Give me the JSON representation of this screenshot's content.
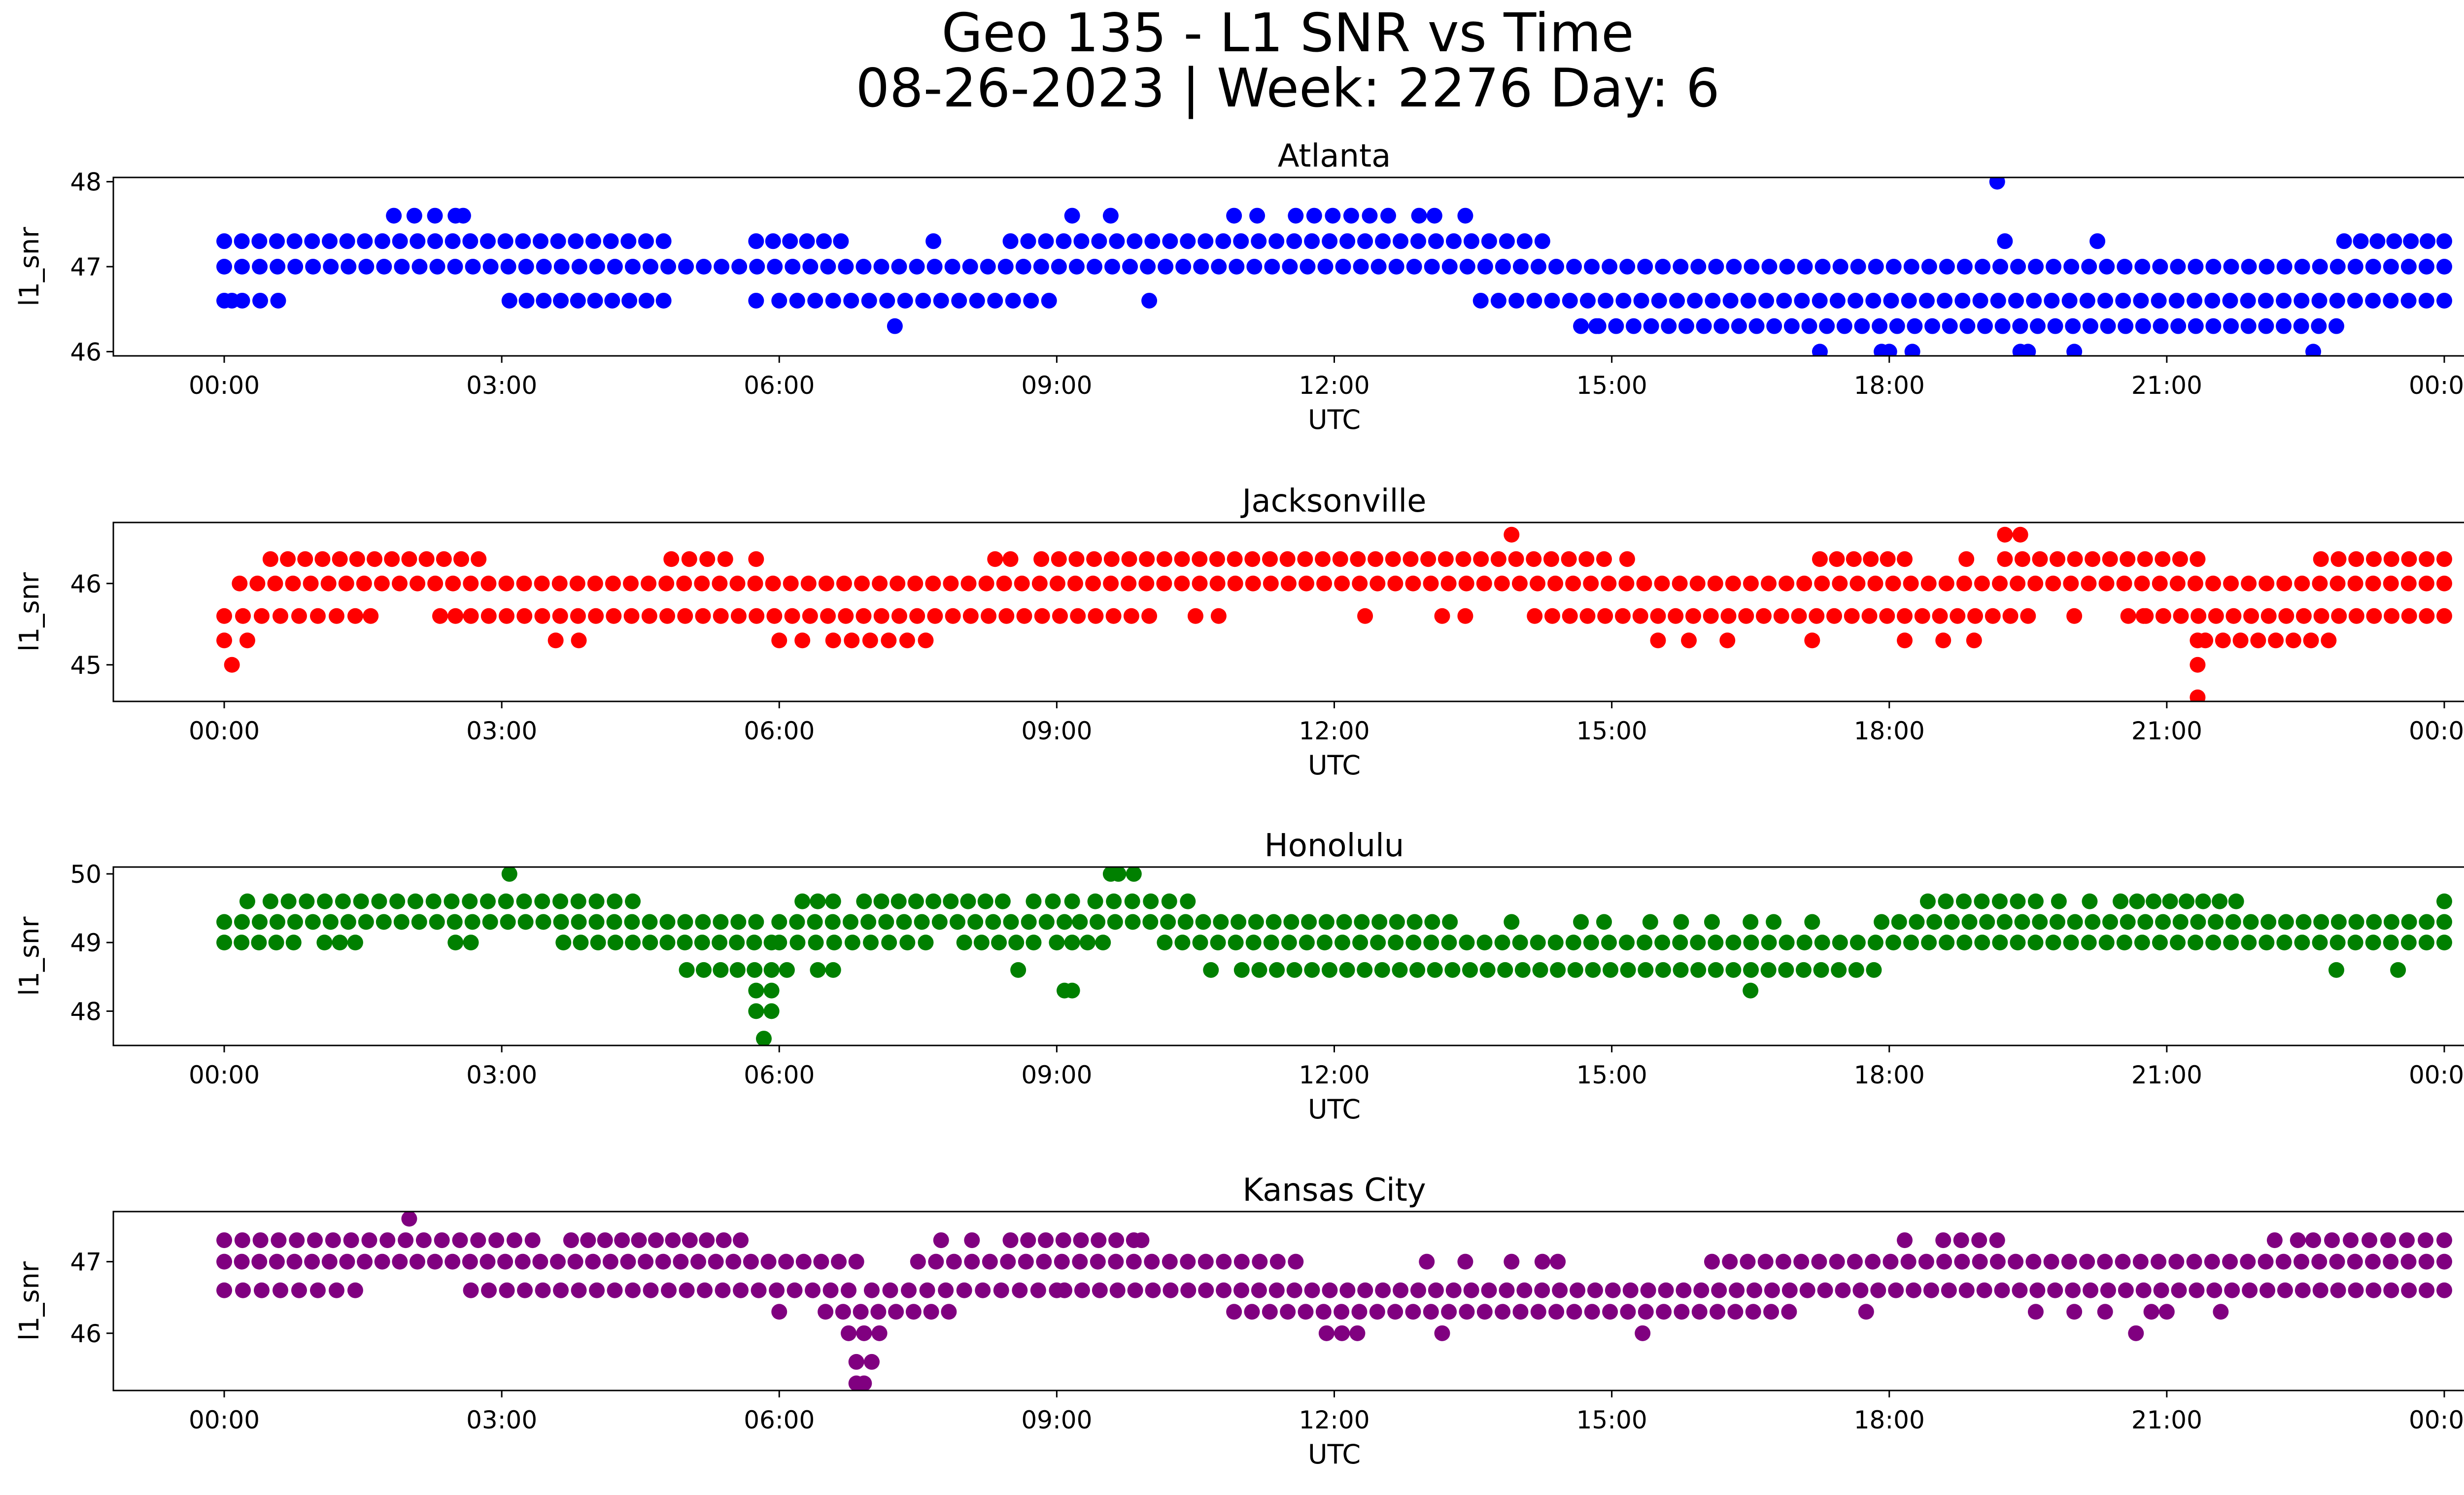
{
  "title_line1": "Geo 135 - L1 SNR vs Time",
  "title_line2": "08-26-2023 | Week: 2276 Day: 6",
  "chart_data": [
    {
      "type": "scatter",
      "title": "Atlanta",
      "xlabel": "UTC",
      "ylabel": "l1_snr",
      "color": "#0000ff",
      "xlim": [
        "00:00",
        "24:00"
      ],
      "ylim": [
        45.95,
        48.05
      ],
      "xticks": [
        "00:00",
        "03:00",
        "06:00",
        "09:00",
        "12:00",
        "15:00",
        "18:00",
        "21:00",
        "00:00"
      ],
      "yticks": [
        46,
        47,
        48
      ],
      "segments": [
        {
          "y": 47.3,
          "ranges": [
            [
              "00:00",
              "04:45"
            ],
            [
              "05:45",
              "06:40"
            ],
            [
              "08:30",
              "14:15"
            ],
            [
              "22:55",
              "24:00"
            ]
          ]
        },
        {
          "y": 47.0,
          "ranges": [
            [
              "00:00",
              "24:00"
            ]
          ]
        },
        {
          "y": 46.6,
          "ranges": [
            [
              "00:00",
              "00:35"
            ],
            [
              "03:05",
              "04:45"
            ],
            [
              "06:00",
              "08:55"
            ],
            [
              "13:35",
              "24:00"
            ]
          ]
        },
        {
          "y": 46.3,
          "ranges": [
            [
              "14:40",
              "22:50"
            ]
          ]
        },
        {
          "y": 47.6,
          "ranges": [
            [
              "01:50",
              "02:30"
            ],
            [
              "10:55",
              "11:10"
            ],
            [
              "11:35",
              "12:35"
            ]
          ]
        }
      ],
      "points": [
        {
          "x": "00:05",
          "y": 46.6
        },
        {
          "x": "02:35",
          "y": 47.6
        },
        {
          "x": "05:45",
          "y": 46.6
        },
        {
          "x": "07:15",
          "y": 46.3
        },
        {
          "x": "07:40",
          "y": 47.3
        },
        {
          "x": "09:10",
          "y": 47.6
        },
        {
          "x": "09:35",
          "y": 47.6
        },
        {
          "x": "10:00",
          "y": 46.6
        },
        {
          "x": "12:55",
          "y": 47.6
        },
        {
          "x": "13:05",
          "y": 47.6
        },
        {
          "x": "13:25",
          "y": 47.6
        },
        {
          "x": "14:50",
          "y": 46.3
        },
        {
          "x": "17:15",
          "y": 46.0
        },
        {
          "x": "17:55",
          "y": 46.0
        },
        {
          "x": "18:00",
          "y": 46.0
        },
        {
          "x": "18:15",
          "y": 46.0
        },
        {
          "x": "19:10",
          "y": 48.0
        },
        {
          "x": "19:15",
          "y": 47.3
        },
        {
          "x": "19:25",
          "y": 46.0
        },
        {
          "x": "19:30",
          "y": 46.0
        },
        {
          "x": "20:00",
          "y": 46.0
        },
        {
          "x": "20:15",
          "y": 47.3
        },
        {
          "x": "22:35",
          "y": 46.0
        }
      ]
    },
    {
      "type": "scatter",
      "title": "Jacksonville",
      "xlabel": "UTC",
      "ylabel": "l1_snr",
      "color": "#ff0000",
      "xlim": [
        "00:00",
        "24:00"
      ],
      "ylim": [
        44.55,
        46.75
      ],
      "xticks": [
        "00:00",
        "03:00",
        "06:00",
        "09:00",
        "12:00",
        "15:00",
        "18:00",
        "21:00",
        "00:00"
      ],
      "yticks": [
        45,
        46
      ],
      "segments": [
        {
          "y": 46.3,
          "ranges": [
            [
              "00:30",
              "02:45"
            ],
            [
              "04:50",
              "05:25"
            ],
            [
              "08:20",
              "08:30"
            ],
            [
              "08:50",
              "14:55"
            ],
            [
              "17:15",
              "18:10"
            ],
            [
              "19:15",
              "21:20"
            ],
            [
              "22:40",
              "24:00"
            ]
          ]
        },
        {
          "y": 46.0,
          "ranges": [
            [
              "00:10",
              "24:00"
            ]
          ]
        },
        {
          "y": 45.6,
          "ranges": [
            [
              "00:00",
              "01:25"
            ],
            [
              "02:20",
              "02:30"
            ],
            [
              "02:40",
              "10:00"
            ],
            [
              "14:10",
              "19:30"
            ],
            [
              "20:35",
              "24:00"
            ]
          ]
        },
        {
          "y": 45.3,
          "ranges": [
            [
              "00:00",
              "00:15"
            ],
            [
              "06:35",
              "07:35"
            ],
            [
              "21:25",
              "22:45"
            ]
          ]
        }
      ],
      "points": [
        {
          "x": "00:05",
          "y": 45.0
        },
        {
          "x": "01:35",
          "y": 45.6
        },
        {
          "x": "03:35",
          "y": 45.3
        },
        {
          "x": "03:50",
          "y": 45.3
        },
        {
          "x": "05:45",
          "y": 46.3
        },
        {
          "x": "06:00",
          "y": 45.3
        },
        {
          "x": "06:15",
          "y": 45.3
        },
        {
          "x": "10:30",
          "y": 45.6
        },
        {
          "x": "10:45",
          "y": 45.6
        },
        {
          "x": "12:20",
          "y": 45.6
        },
        {
          "x": "13:10",
          "y": 45.6
        },
        {
          "x": "13:25",
          "y": 45.6
        },
        {
          "x": "13:55",
          "y": 46.6
        },
        {
          "x": "15:10",
          "y": 46.3
        },
        {
          "x": "15:30",
          "y": 45.3
        },
        {
          "x": "15:50",
          "y": 45.3
        },
        {
          "x": "16:15",
          "y": 45.3
        },
        {
          "x": "17:10",
          "y": 45.3
        },
        {
          "x": "18:10",
          "y": 45.3
        },
        {
          "x": "18:35",
          "y": 45.3
        },
        {
          "x": "18:50",
          "y": 46.3
        },
        {
          "x": "18:55",
          "y": 45.3
        },
        {
          "x": "19:15",
          "y": 46.6
        },
        {
          "x": "19:25",
          "y": 46.6
        },
        {
          "x": "20:00",
          "y": 45.6
        },
        {
          "x": "20:45",
          "y": 45.6
        },
        {
          "x": "21:20",
          "y": 45.0
        },
        {
          "x": "21:20",
          "y": 44.6
        },
        {
          "x": "21:20",
          "y": 45.3
        }
      ]
    },
    {
      "type": "scatter",
      "title": "Honolulu",
      "xlabel": "UTC",
      "ylabel": "l1_snr",
      "color": "#008000",
      "xlim": [
        "00:00",
        "24:00"
      ],
      "ylim": [
        47.5,
        50.1
      ],
      "xticks": [
        "00:00",
        "03:00",
        "06:00",
        "09:00",
        "12:00",
        "15:00",
        "18:00",
        "21:00",
        "00:00"
      ],
      "yticks": [
        48,
        49,
        50
      ],
      "segments": [
        {
          "y": 49.6,
          "ranges": [
            [
              "00:30",
              "04:25"
            ],
            [
              "06:15",
              "06:35"
            ],
            [
              "06:55",
              "08:25"
            ],
            [
              "08:45",
              "09:10"
            ],
            [
              "09:25",
              "10:25"
            ],
            [
              "18:25",
              "19:35"
            ],
            [
              "20:30",
              "21:45"
            ]
          ]
        },
        {
          "y": 49.3,
          "ranges": [
            [
              "00:00",
              "05:45"
            ],
            [
              "06:00",
              "09:05"
            ],
            [
              "09:15",
              "13:15"
            ],
            [
              "17:55",
              "24:00"
            ]
          ]
        },
        {
          "y": 49.0,
          "ranges": [
            [
              "00:00",
              "00:45"
            ],
            [
              "02:30",
              "02:40"
            ],
            [
              "03:40",
              "05:55"
            ],
            [
              "06:00",
              "07:35"
            ],
            [
              "08:00",
              "08:45"
            ],
            [
              "09:00",
              "09:30"
            ],
            [
              "10:10",
              "24:00"
            ]
          ]
        },
        {
          "y": 48.6,
          "ranges": [
            [
              "05:00",
              "05:55"
            ],
            [
              "06:25",
              "06:35"
            ],
            [
              "11:00",
              "17:50"
            ]
          ]
        },
        {
          "y": 48.3,
          "ranges": [
            [
              "05:45",
              "05:55"
            ],
            [
              "09:05",
              "09:10"
            ]
          ]
        },
        {
          "y": 48.0,
          "ranges": [
            [
              "05:45",
              "05:55"
            ]
          ]
        }
      ],
      "points": [
        {
          "x": "00:15",
          "y": 49.6
        },
        {
          "x": "01:05",
          "y": 49.0
        },
        {
          "x": "01:15",
          "y": 49.0
        },
        {
          "x": "01:25",
          "y": 49.0
        },
        {
          "x": "03:05",
          "y": 50.0
        },
        {
          "x": "05:50",
          "y": 47.6
        },
        {
          "x": "06:05",
          "y": 48.6
        },
        {
          "x": "08:35",
          "y": 48.6
        },
        {
          "x": "09:35",
          "y": 50.0
        },
        {
          "x": "09:40",
          "y": 50.0
        },
        {
          "x": "09:50",
          "y": 50.0
        },
        {
          "x": "10:40",
          "y": 48.6
        },
        {
          "x": "13:55",
          "y": 49.3
        },
        {
          "x": "14:40",
          "y": 49.3
        },
        {
          "x": "14:55",
          "y": 49.3
        },
        {
          "x": "15:25",
          "y": 49.3
        },
        {
          "x": "15:45",
          "y": 49.3
        },
        {
          "x": "16:05",
          "y": 49.3
        },
        {
          "x": "16:30",
          "y": 49.3
        },
        {
          "x": "16:30",
          "y": 48.3
        },
        {
          "x": "16:45",
          "y": 49.3
        },
        {
          "x": "17:10",
          "y": 49.3
        },
        {
          "x": "19:50",
          "y": 49.6
        },
        {
          "x": "20:10",
          "y": 49.6
        },
        {
          "x": "22:50",
          "y": 48.6
        },
        {
          "x": "23:30",
          "y": 48.6
        },
        {
          "x": "24:00",
          "y": 49.6
        }
      ]
    },
    {
      "type": "scatter",
      "title": "Kansas City",
      "xlabel": "UTC",
      "ylabel": "l1_snr",
      "color": "#800080",
      "xlim": [
        "00:00",
        "24:00"
      ],
      "ylim": [
        45.2,
        47.7
      ],
      "xticks": [
        "00:00",
        "03:00",
        "06:00",
        "09:00",
        "12:00",
        "15:00",
        "18:00",
        "21:00",
        "00:00"
      ],
      "yticks": [
        46,
        47
      ],
      "segments": [
        {
          "y": 47.3,
          "ranges": [
            [
              "00:00",
              "03:20"
            ],
            [
              "03:45",
              "05:35"
            ],
            [
              "08:30",
              "09:50"
            ],
            [
              "18:35",
              "19:10"
            ],
            [
              "22:35",
              "24:00"
            ]
          ]
        },
        {
          "y": 47.0,
          "ranges": [
            [
              "00:00",
              "06:50"
            ],
            [
              "07:30",
              "11:35"
            ],
            [
              "16:05",
              "24:00"
            ]
          ]
        },
        {
          "y": 46.6,
          "ranges": [
            [
              "00:00",
              "01:25"
            ],
            [
              "02:40",
              "06:45"
            ],
            [
              "07:00",
              "09:00"
            ],
            [
              "09:05",
              "24:00"
            ]
          ]
        },
        {
          "y": 46.3,
          "ranges": [
            [
              "06:30",
              "07:50"
            ],
            [
              "10:55",
              "16:55"
            ]
          ]
        },
        {
          "y": 46.0,
          "ranges": [
            [
              "06:45",
              "07:05"
            ],
            [
              "11:55",
              "12:15"
            ]
          ]
        },
        {
          "y": 45.6,
          "ranges": [
            [
              "06:50",
              "07:00"
            ]
          ]
        }
      ],
      "points": [
        {
          "x": "02:00",
          "y": 47.6
        },
        {
          "x": "06:00",
          "y": 46.3
        },
        {
          "x": "06:50",
          "y": 45.3
        },
        {
          "x": "06:55",
          "y": 45.3
        },
        {
          "x": "07:45",
          "y": 47.3
        },
        {
          "x": "08:05",
          "y": 47.3
        },
        {
          "x": "09:55",
          "y": 47.3
        },
        {
          "x": "13:00",
          "y": 47.0
        },
        {
          "x": "13:10",
          "y": 46.0
        },
        {
          "x": "13:25",
          "y": 47.0
        },
        {
          "x": "13:55",
          "y": 47.0
        },
        {
          "x": "14:15",
          "y": 47.0
        },
        {
          "x": "14:25",
          "y": 47.0
        },
        {
          "x": "15:20",
          "y": 46.0
        },
        {
          "x": "17:45",
          "y": 46.3
        },
        {
          "x": "18:10",
          "y": 47.3
        },
        {
          "x": "19:35",
          "y": 46.3
        },
        {
          "x": "20:00",
          "y": 46.3
        },
        {
          "x": "20:20",
          "y": 46.3
        },
        {
          "x": "20:40",
          "y": 46.0
        },
        {
          "x": "20:50",
          "y": 46.3
        },
        {
          "x": "21:00",
          "y": 46.3
        },
        {
          "x": "21:35",
          "y": 46.3
        },
        {
          "x": "22:10",
          "y": 47.3
        },
        {
          "x": "22:25",
          "y": 47.3
        }
      ]
    }
  ]
}
